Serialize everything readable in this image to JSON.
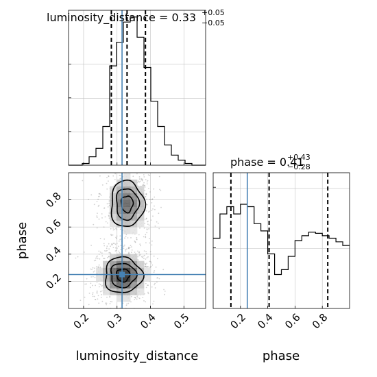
{
  "chart_data": {
    "type": "corner",
    "colors": {
      "truth": "#4682b4",
      "line": "#000000",
      "grid": "#c0c0c0",
      "points": "#9a9a9a"
    },
    "parameters": [
      "luminosity_distance",
      "phase"
    ],
    "titles": {
      "luminosity_distance": {
        "name": "luminosity_distance",
        "value": "0.33",
        "plus": "+0.05",
        "minus": "−0.05"
      },
      "phase": {
        "name": "phase",
        "value": "0.41",
        "plus": "+0.43",
        "minus": "−0.28"
      }
    },
    "axes": {
      "luminosity_distance": {
        "label": "luminosity_distance",
        "range": [
          0.155,
          0.565
        ],
        "ticks": [
          "0.2",
          "0.3",
          "0.4",
          "0.5"
        ],
        "tick_values": [
          0.2,
          0.3,
          0.4,
          0.5
        ]
      },
      "phase": {
        "label": "phase",
        "range": [
          0.0,
          1.0
        ],
        "ticks": [
          "0.2",
          "0.4",
          "0.6",
          "0.8"
        ],
        "tick_values": [
          0.2,
          0.4,
          0.6,
          0.8
        ]
      }
    },
    "truths": {
      "luminosity_distance": 0.315,
      "phase": 0.25
    },
    "quantiles": {
      "luminosity_distance": [
        0.283,
        0.33,
        0.385
      ],
      "phase": [
        0.13,
        0.41,
        0.84
      ]
    },
    "hist_luminosity_distance": {
      "bin_width": 0.0205,
      "bins_start": [
        0.155,
        0.1755,
        0.196,
        0.2165,
        0.237,
        0.2575,
        0.278,
        0.2985,
        0.319,
        0.3395,
        0.36,
        0.3805,
        0.401,
        0.4215,
        0.442,
        0.4625,
        0.483,
        0.5035,
        0.524,
        0.5445
      ],
      "counts": [
        0,
        0,
        1,
        5,
        10,
        23,
        59,
        73,
        85,
        88,
        76,
        58,
        38,
        23,
        12,
        6,
        3,
        1,
        0,
        0
      ],
      "ylim": [
        0,
        92
      ]
    },
    "hist_phase": {
      "bin_width": 0.05,
      "bins_start": [
        0.0,
        0.05,
        0.1,
        0.15,
        0.2,
        0.25,
        0.3,
        0.35,
        0.4,
        0.45,
        0.5,
        0.55,
        0.6,
        0.65,
        0.7,
        0.75,
        0.8,
        0.85,
        0.9,
        0.95
      ],
      "counts": [
        58,
        78,
        84,
        78,
        86,
        84,
        70,
        64,
        45,
        28,
        32,
        43,
        56,
        60,
        63,
        62,
        60,
        58,
        55,
        52
      ],
      "ylim": [
        0,
        112
      ]
    },
    "density_2d": {
      "x_bins": [
        0.155,
        0.1755,
        0.196,
        0.2165,
        0.237,
        0.2575,
        0.278,
        0.2985,
        0.319,
        0.3395,
        0.36,
        0.3805,
        0.401,
        0.4215,
        0.442,
        0.4625,
        0.483,
        0.5035,
        0.524,
        0.5445,
        0.565
      ],
      "y_bins": [
        0.0,
        0.05,
        0.1,
        0.15,
        0.2,
        0.25,
        0.3,
        0.35,
        0.4,
        0.45,
        0.5,
        0.55,
        0.6,
        0.65,
        0.7,
        0.75,
        0.8,
        0.85,
        0.9,
        0.95,
        1.0
      ],
      "modes": [
        {
          "x": 0.318,
          "y": 0.245,
          "sx": 0.036,
          "sy": 0.085,
          "w": 1.0
        },
        {
          "x": 0.33,
          "y": 0.77,
          "sx": 0.032,
          "sy": 0.11,
          "w": 0.7
        }
      ],
      "contour_levels": 3
    }
  }
}
